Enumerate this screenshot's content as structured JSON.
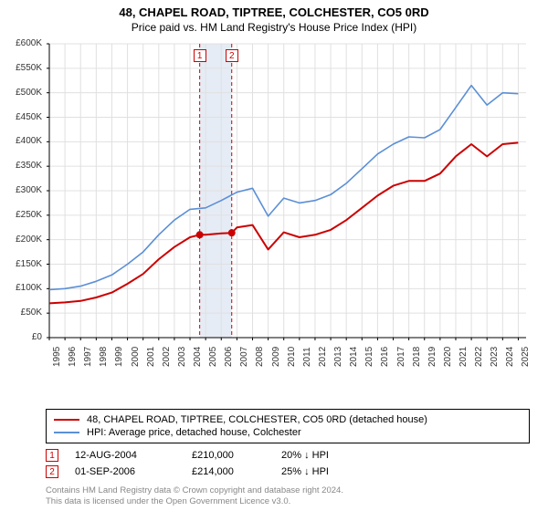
{
  "title_line1": "48, CHAPEL ROAD, TIPTREE, COLCHESTER, CO5 0RD",
  "title_line2": "Price paid vs. HM Land Registry's House Price Index (HPI)",
  "chart": {
    "type": "line",
    "background_color": "#ffffff",
    "grid_color": "#e0e0e0",
    "axis_color": "#000000",
    "highlight_band_color": "#e6ecf5",
    "highlight_band_xstart": 2004.62,
    "highlight_band_xend": 2006.67,
    "xlim": [
      1995,
      2025.5
    ],
    "xticks": [
      1995,
      1996,
      1997,
      1998,
      1999,
      2000,
      2001,
      2002,
      2003,
      2004,
      2005,
      2006,
      2007,
      2008,
      2009,
      2010,
      2011,
      2012,
      2013,
      2014,
      2015,
      2016,
      2017,
      2018,
      2019,
      2020,
      2021,
      2022,
      2023,
      2024,
      2025
    ],
    "ylim": [
      0,
      600000
    ],
    "ytick_step": 50000,
    "ytick_labels": [
      "£0",
      "£50K",
      "£100K",
      "£150K",
      "£200K",
      "£250K",
      "£300K",
      "£350K",
      "£400K",
      "£450K",
      "£500K",
      "£550K",
      "£600K"
    ],
    "x_label_fontsize": 10,
    "y_label_fontsize": 10,
    "series": [
      {
        "name": "property",
        "label": "48, CHAPEL ROAD, TIPTREE, COLCHESTER, CO5 0RD (detached house)",
        "color": "#cc0000",
        "line_width": 2,
        "x": [
          1995,
          1996,
          1997,
          1998,
          1999,
          2000,
          2001,
          2002,
          2003,
          2004,
          2004.62,
          2005,
          2006,
          2006.67,
          2007,
          2008,
          2009,
          2010,
          2011,
          2012,
          2013,
          2014,
          2015,
          2016,
          2017,
          2018,
          2019,
          2020,
          2021,
          2022,
          2023,
          2024,
          2025
        ],
        "y": [
          70000,
          72000,
          75000,
          82000,
          92000,
          110000,
          130000,
          160000,
          185000,
          205000,
          210000,
          210000,
          213000,
          214000,
          225000,
          230000,
          180000,
          215000,
          205000,
          210000,
          220000,
          240000,
          265000,
          290000,
          310000,
          320000,
          320000,
          335000,
          370000,
          395000,
          370000,
          395000,
          398000
        ]
      },
      {
        "name": "hpi",
        "label": "HPI: Average price, detached house, Colchester",
        "color": "#5b8fd6",
        "line_width": 1.6,
        "x": [
          1995,
          1996,
          1997,
          1998,
          1999,
          2000,
          2001,
          2002,
          2003,
          2004,
          2005,
          2006,
          2007,
          2008,
          2009,
          2010,
          2011,
          2012,
          2013,
          2014,
          2015,
          2016,
          2017,
          2018,
          2019,
          2020,
          2021,
          2022,
          2023,
          2024,
          2025
        ],
        "y": [
          98000,
          100000,
          105000,
          115000,
          128000,
          150000,
          175000,
          210000,
          240000,
          262000,
          265000,
          280000,
          297000,
          305000,
          248000,
          285000,
          275000,
          280000,
          292000,
          315000,
          345000,
          375000,
          395000,
          410000,
          408000,
          425000,
          470000,
          515000,
          475000,
          500000,
          498000
        ]
      }
    ],
    "sale_markers": [
      {
        "idx": "1",
        "x": 2004.62,
        "y": 210000,
        "color": "#cc0000"
      },
      {
        "idx": "2",
        "x": 2006.67,
        "y": 214000,
        "color": "#cc0000"
      }
    ],
    "dashed_line_color": "#cc0000",
    "dashed_line_dash": "4,3"
  },
  "legend": {
    "items": [
      {
        "color": "#cc0000",
        "width": 2,
        "label": "48, CHAPEL ROAD, TIPTREE, COLCHESTER, CO5 0RD (detached house)"
      },
      {
        "color": "#5b8fd6",
        "width": 1.6,
        "label": "HPI: Average price, detached house, Colchester"
      }
    ]
  },
  "transactions": [
    {
      "idx": "1",
      "color": "#cc0000",
      "date": "12-AUG-2004",
      "price": "£210,000",
      "pct": "20% ↓ HPI"
    },
    {
      "idx": "2",
      "color": "#cc0000",
      "date": "01-SEP-2006",
      "price": "£214,000",
      "pct": "25% ↓ HPI"
    }
  ],
  "footer_line1": "Contains HM Land Registry data © Crown copyright and database right 2024.",
  "footer_line2": "This data is licensed under the Open Government Licence v3.0."
}
